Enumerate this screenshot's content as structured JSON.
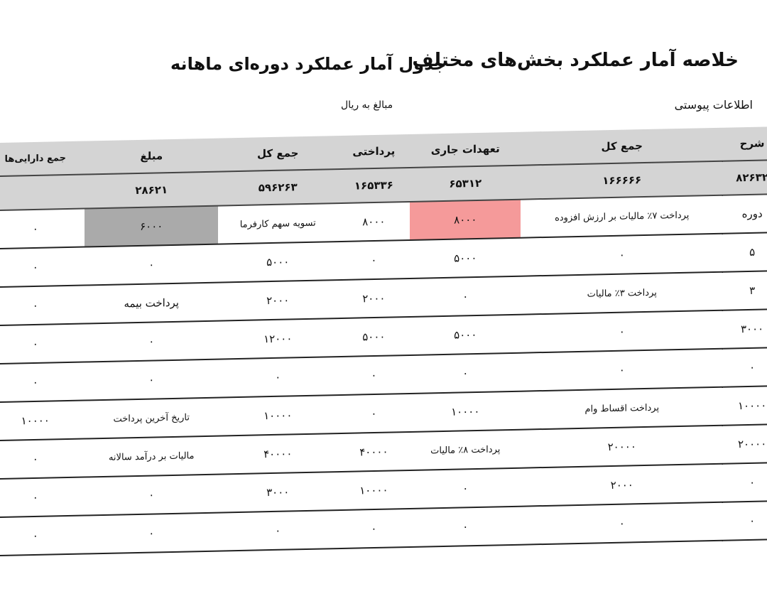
{
  "header": {
    "title": "خلاصه آمار عملکرد بخش‌های مختلف",
    "subtitle": "جدول آمار عملکرد دوره‌ای ماهانه",
    "unit": "مبالغ به ریال",
    "section": "اطلاعات پیوستی"
  },
  "table": {
    "rows": [
      [
        "شرح",
        "جمع کل",
        "تعهدات جاری",
        "پرداختی",
        "جمع کل",
        "مبلغ",
        "جمع دارایی‌ها"
      ],
      [
        "۸۲۶۳۲",
        "۱۶۶۶۶۶",
        "۶۵۳۱۲",
        "۱۶۵۳۳۶",
        "۵۹۶۲۶۳",
        "۲۸۶۲۱",
        null
      ],
      [
        "دوره",
        "پرداخت ۷٪ مالیات بر ارزش افزوده",
        "۸۰۰۰",
        "۸۰۰۰",
        "تسویه سهم کارفرما",
        "۶۰۰۰",
        "۰"
      ],
      [
        "۵",
        "۰",
        "۵۰۰۰",
        "۰",
        "۵۰۰۰",
        "۰",
        "۰"
      ],
      [
        "۳",
        "پرداخت ۳٪ مالیات",
        "۰",
        "۲۰۰۰",
        "۲۰۰۰",
        "پرداخت بیمه",
        "۰"
      ],
      [
        "۳۰۰۰",
        "۰",
        "۵۰۰۰",
        "۵۰۰۰",
        "۱۲۰۰۰",
        "۰",
        "۰"
      ],
      [
        "۰",
        "۰",
        "۰",
        "۰",
        "۰",
        "۰",
        "۰"
      ],
      [
        "۱۰۰۰۰",
        "پرداخت اقساط وام",
        "۱۰۰۰۰",
        "۰",
        "۱۰۰۰۰",
        "تاریخ آخرین پرداخت",
        "۱۰۰۰۰"
      ],
      [
        "۲۰۰۰۰",
        "۲۰۰۰۰",
        "پرداخت ۸٪ مالیات",
        "۴۰۰۰۰",
        "۴۰۰۰۰",
        "مالیات بر درآمد سالانه",
        "۰"
      ],
      [
        "۰",
        "۲۰۰۰",
        "۰",
        "۱۰۰۰۰",
        "۳۰۰۰",
        "۰",
        "۰"
      ],
      [
        "۰",
        "۰",
        "۰",
        "۰",
        "۰",
        "۰",
        "۰"
      ]
    ]
  }
}
